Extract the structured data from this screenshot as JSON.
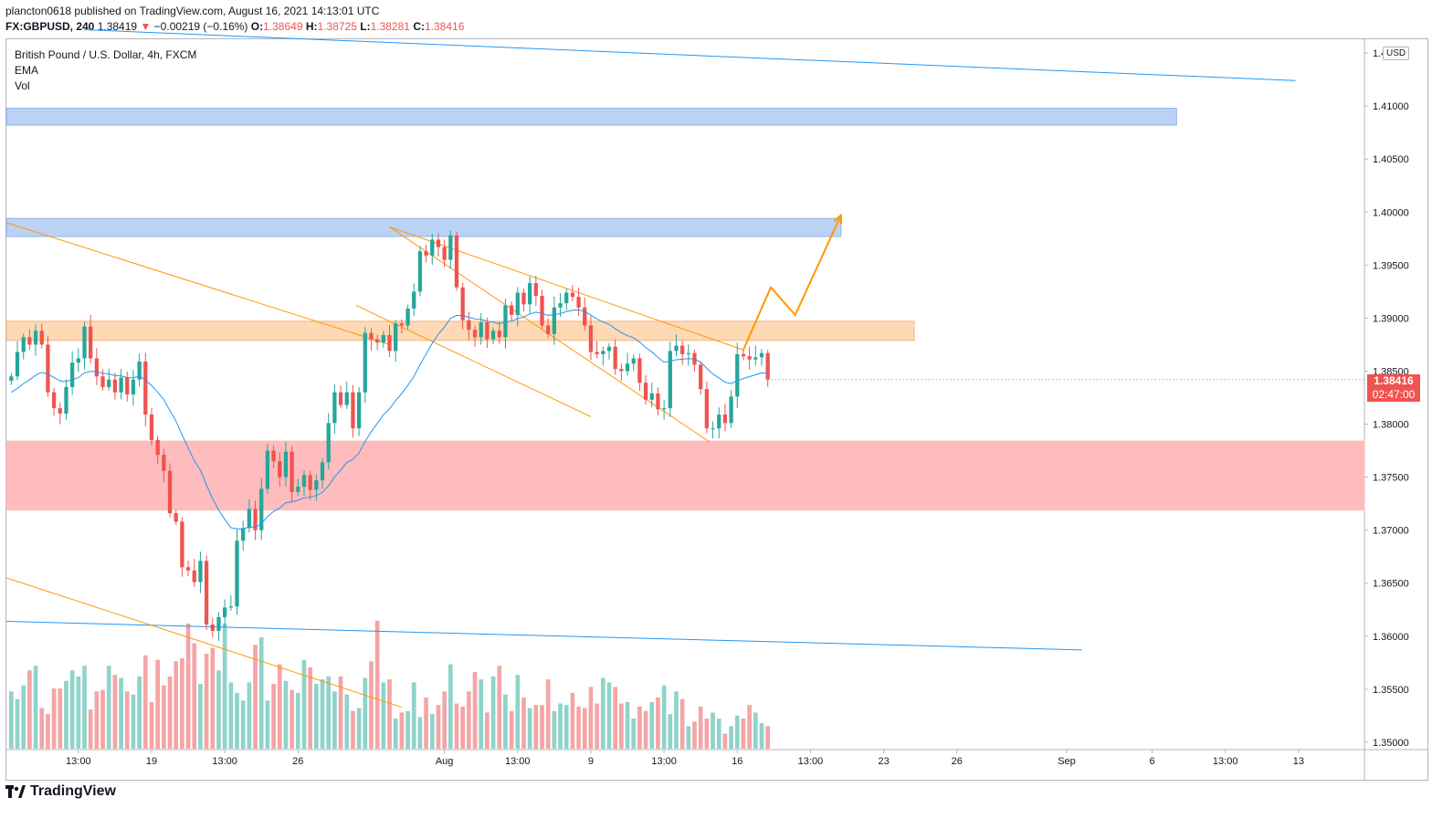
{
  "header": {
    "line1": "plancton0618 published on TradingView.com, August 16, 2021 14:13:01 UTC",
    "symbol": "FX:GBPUSD, 240",
    "last": "1.38419",
    "arrow": "▼",
    "change": "−0.00219 (−0.16%)",
    "o_label": "O:",
    "o_val": "1.38649",
    "h_label": "H:",
    "h_val": "1.38725",
    "l_label": "L:",
    "l_val": "1.38281",
    "c_label": "C:",
    "c_val": "1.38416"
  },
  "legend": {
    "title": "British Pound / U.S. Dollar, 4h, FXCM",
    "ema": "EMA",
    "vol": "Vol"
  },
  "currency": "USD",
  "last_price_tag": {
    "price": "1.38416",
    "countdown": "02:47:00"
  },
  "logo": {
    "text": "TradingView"
  },
  "colors": {
    "up": "#26a69a",
    "down": "#ef5350",
    "ema": "#2196f3",
    "orange": "#ff9800",
    "zone_blue": "#bbd2f5",
    "zone_orange": "#fdd9b5",
    "zone_red": "#ffbcbc",
    "vol_up": "#8fd3c9",
    "vol_down": "#f4a5a5"
  },
  "chart_data": {
    "type": "candlestick",
    "title": "British Pound / U.S. Dollar, 4h, FXCM",
    "y_ticks": [
      1.35,
      1.355,
      1.36,
      1.365,
      1.37,
      1.375,
      1.38,
      1.385,
      1.39,
      1.395,
      1.4,
      1.405,
      1.41,
      1.415
    ],
    "y_tick_labels": [
      "1.35000",
      "1.35500",
      "1.36000",
      "1.36500",
      "1.37000",
      "1.37500",
      "1.38000",
      "1.38500",
      "1.39000",
      "1.39500",
      "1.40000",
      "1.40500",
      "1.41000",
      "1.41500"
    ],
    "ylim": [
      1.3493,
      1.4163
    ],
    "x_ticks": [
      {
        "bar": 11,
        "label": "13:00"
      },
      {
        "bar": 23,
        "label": "19"
      },
      {
        "bar": 35,
        "label": "13:00"
      },
      {
        "bar": 47,
        "label": "26"
      },
      {
        "bar": 71,
        "label": "Aug"
      },
      {
        "bar": 83,
        "label": "13:00"
      },
      {
        "bar": 95,
        "label": "9"
      },
      {
        "bar": 107,
        "label": "13:00"
      },
      {
        "bar": 119,
        "label": "16"
      },
      {
        "bar": 131,
        "label": "13:00"
      },
      {
        "bar": 143,
        "label": "23"
      },
      {
        "bar": 155,
        "label": "26"
      },
      {
        "bar": 173,
        "label": "Sep"
      },
      {
        "bar": 187,
        "label": "6"
      },
      {
        "bar": 199,
        "label": "13:00"
      },
      {
        "bar": 211,
        "label": "13"
      }
    ],
    "x_range_bars": [
      -0.8,
      221.8
    ],
    "close": [
      1.3845,
      1.3868,
      1.3882,
      1.3875,
      1.3888,
      1.3875,
      1.383,
      1.3815,
      1.381,
      1.3835,
      1.3858,
      1.3862,
      1.3892,
      1.3862,
      1.3845,
      1.3835,
      1.3842,
      1.383,
      1.3844,
      1.3828,
      1.3842,
      1.3859,
      1.3809,
      1.3785,
      1.3771,
      1.3756,
      1.3716,
      1.3708,
      1.3665,
      1.3662,
      1.3651,
      1.3671,
      1.3611,
      1.3605,
      1.3618,
      1.3627,
      1.3628,
      1.369,
      1.3702,
      1.372,
      1.37,
      1.3739,
      1.3775,
      1.3765,
      1.375,
      1.3774,
      1.3736,
      1.3741,
      1.3752,
      1.3738,
      1.3747,
      1.3764,
      1.3801,
      1.383,
      1.3818,
      1.383,
      1.3796,
      1.383,
      1.3886,
      1.388,
      1.3877,
      1.3884,
      1.3869,
      1.3895,
      1.3893,
      1.3909,
      1.3925,
      1.3963,
      1.3959,
      1.3974,
      1.3967,
      1.3955,
      1.3978,
      1.3929,
      1.3898,
      1.3889,
      1.3882,
      1.3896,
      1.388,
      1.3888,
      1.3882,
      1.3912,
      1.3903,
      1.3924,
      1.3913,
      1.3933,
      1.3921,
      1.3893,
      1.3885,
      1.391,
      1.3914,
      1.3924,
      1.392,
      1.391,
      1.3893,
      1.3868,
      1.3866,
      1.3869,
      1.3873,
      1.3852,
      1.385,
      1.3857,
      1.3862,
      1.3839,
      1.3823,
      1.3829,
      1.3814,
      1.3815,
      1.3869,
      1.3874,
      1.3866,
      1.3867,
      1.3856,
      1.3833,
      1.3796,
      1.3796,
      1.3809,
      1.3801,
      1.3826,
      1.3866,
      1.3864,
      1.3861,
      1.3863,
      1.3867,
      1.3842
    ],
    "ema_start": 1.383,
    "volume_scale": "relative 0-1",
    "volume": [
      0.38,
      0.33,
      0.42,
      0.52,
      0.55,
      0.27,
      0.23,
      0.4,
      0.4,
      0.45,
      0.52,
      0.48,
      0.55,
      0.26,
      0.38,
      0.39,
      0.55,
      0.49,
      0.47,
      0.38,
      0.36,
      0.48,
      0.62,
      0.31,
      0.59,
      0.42,
      0.48,
      0.58,
      0.6,
      0.83,
      0.7,
      0.43,
      0.63,
      0.67,
      0.52,
      0.83,
      0.44,
      0.37,
      0.32,
      0.44,
      0.69,
      0.74,
      0.32,
      0.43,
      0.56,
      0.45,
      0.39,
      0.37,
      0.59,
      0.54,
      0.43,
      0.46,
      0.48,
      0.38,
      0.48,
      0.36,
      0.25,
      0.27,
      0.47,
      0.58,
      0.85,
      0.44,
      0.46,
      0.2,
      0.24,
      0.25,
      0.44,
      0.21,
      0.34,
      0.23,
      0.29,
      0.38,
      0.56,
      0.3,
      0.28,
      0.38,
      0.51,
      0.46,
      0.24,
      0.48,
      0.55,
      0.36,
      0.25,
      0.49,
      0.34,
      0.27,
      0.29,
      0.29,
      0.46,
      0.25,
      0.3,
      0.29,
      0.37,
      0.28,
      0.27,
      0.41,
      0.3,
      0.47,
      0.44,
      0.41,
      0.3,
      0.31,
      0.2,
      0.28,
      0.25,
      0.31,
      0.34,
      0.42,
      0.23,
      0.38,
      0.33,
      0.15,
      0.18,
      0.28,
      0.2,
      0.24,
      0.2,
      0.1,
      0.15,
      0.22,
      0.2,
      0.29,
      0.24,
      0.17,
      0.15
    ],
    "zones": [
      {
        "from_bar": -0.8,
        "to_bar": 191,
        "y_top": 1.4098,
        "y_bot": 1.4082,
        "color": "blue"
      },
      {
        "from_bar": -0.8,
        "to_bar": 136,
        "y_top": 1.3994,
        "y_bot": 1.3977,
        "color": "blue"
      },
      {
        "from_bar": -0.8,
        "to_bar": 148,
        "y_top": 1.3897,
        "y_bot": 1.3879,
        "color": "orange"
      },
      {
        "from_bar": -0.8,
        "to_bar": 221.8,
        "y_top": 1.3784,
        "y_bot": 1.3719,
        "color": "red"
      }
    ],
    "trendlines": [
      {
        "from": [
          12,
          1.4172
        ],
        "to": [
          210.5,
          1.4124
        ],
        "color": "blue"
      },
      {
        "from": [
          -0.8,
          1.3614
        ],
        "to": [
          175.5,
          1.3587
        ],
        "color": "blue"
      },
      {
        "from": [
          -0.8,
          1.399
        ],
        "to": [
          62,
          1.3875
        ],
        "color": "orange"
      },
      {
        "from": [
          -0.8,
          1.3655
        ],
        "to": [
          64,
          1.3533
        ],
        "color": "orange"
      },
      {
        "from": [
          62,
          1.3986
        ],
        "to": [
          114.5,
          1.3783
        ],
        "color": "orange"
      },
      {
        "from": [
          56.5,
          1.3912
        ],
        "to": [
          95,
          1.3807
        ],
        "color": "orange"
      },
      {
        "from": [
          62,
          1.3986
        ],
        "to": [
          120,
          1.387
        ],
        "color": "orange"
      }
    ],
    "projection": [
      [
        120,
        1.387
      ],
      [
        124.5,
        1.3929
      ],
      [
        128.5,
        1.3903
      ],
      [
        136,
        1.3997
      ]
    ]
  }
}
